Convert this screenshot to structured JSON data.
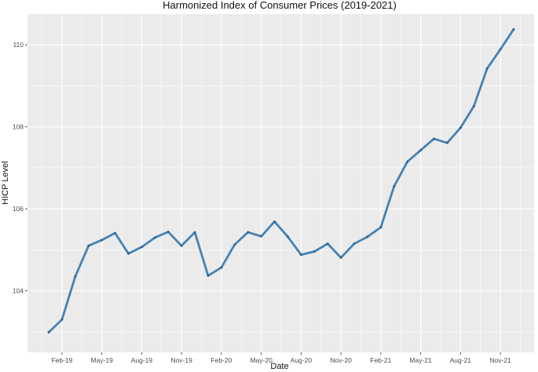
{
  "chart_data": {
    "type": "line",
    "title": "Harmonized Index of Consumer Prices (2019-2021)",
    "xlabel": "Date",
    "ylabel": "HICP Level",
    "x_tick_labels": [
      "Feb-19",
      "May-19",
      "Aug-19",
      "Nov-19",
      "Feb-20",
      "May-20",
      "Aug-20",
      "Nov-20",
      "Feb-21",
      "May-21",
      "Aug-21",
      "Nov-21"
    ],
    "y_ticks": [
      104,
      106,
      108,
      110
    ],
    "ylim": [
      102.5,
      110.75
    ],
    "x": [
      "Jan-19",
      "Feb-19",
      "Mar-19",
      "Apr-19",
      "May-19",
      "Jun-19",
      "Jul-19",
      "Aug-19",
      "Sep-19",
      "Oct-19",
      "Nov-19",
      "Dec-19",
      "Jan-20",
      "Feb-20",
      "Mar-20",
      "Apr-20",
      "May-20",
      "Jun-20",
      "Jul-20",
      "Aug-20",
      "Sep-20",
      "Oct-20",
      "Nov-20",
      "Dec-20",
      "Jan-21",
      "Feb-21",
      "Mar-21",
      "Apr-21",
      "May-21",
      "Jun-21",
      "Jul-21",
      "Aug-21",
      "Sep-21",
      "Oct-21",
      "Nov-21",
      "Dec-21"
    ],
    "values": [
      102.99,
      103.3,
      104.35,
      105.1,
      105.24,
      105.41,
      104.91,
      105.07,
      105.3,
      105.44,
      105.1,
      105.43,
      104.37,
      104.57,
      105.13,
      105.43,
      105.33,
      105.69,
      105.32,
      104.88,
      104.96,
      105.15,
      104.81,
      105.15,
      105.32,
      105.55,
      106.55,
      107.15,
      107.43,
      107.71,
      107.61,
      107.98,
      108.5,
      109.42,
      109.89,
      110.38
    ],
    "line_color": "#4682B4",
    "panel_color": "#EBEBEB",
    "grid": true
  }
}
